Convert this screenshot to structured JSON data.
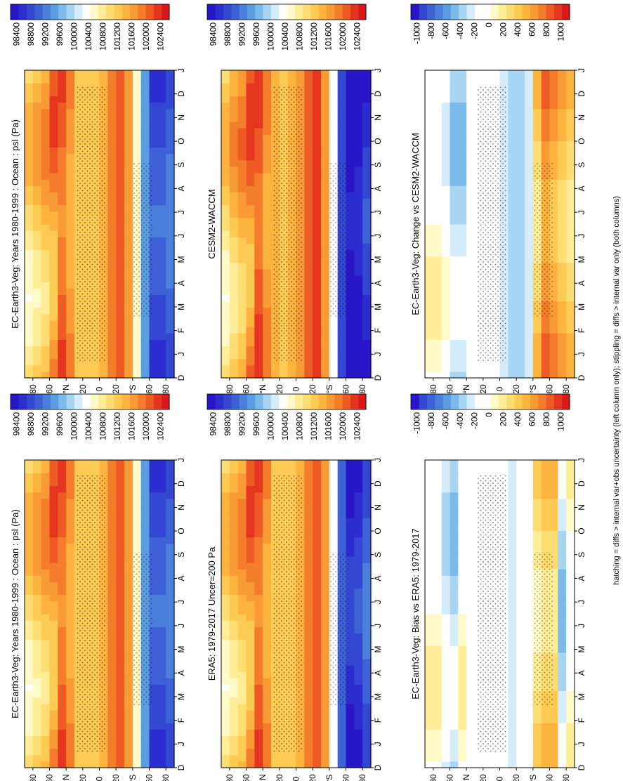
{
  "footnote": "hatching = diffs > internal var+obs uncertainty (left column only); stippling = diffs > internal var only (both columns)",
  "colors": {
    "pressure_scale": [
      "#d7191c",
      "#e4361f",
      "#ee5a24",
      "#f47d2c",
      "#f99b35",
      "#fcb43f",
      "#fdcb53",
      "#fede73",
      "#ffed98",
      "#fffac8",
      "#ffffff",
      "#d5ecfa",
      "#a8d6f2",
      "#7bbbeb",
      "#5b9de3",
      "#4a7fdc",
      "#3d62d6",
      "#3447d2",
      "#2c2dcf",
      "#2a16c9"
    ],
    "anomaly_scale": [
      "#d7191c",
      "#e4361f",
      "#ee5a24",
      "#f47d2c",
      "#f99b35",
      "#fcb43f",
      "#fdcb53",
      "#fede73",
      "#ffed98",
      "#fffac8",
      "#ffffff",
      "#ffffff",
      "#d5ecfa",
      "#a8d6f2",
      "#7bbbeb",
      "#5b9de3",
      "#4a7fdc",
      "#3d62d6",
      "#3447d2",
      "#2a16c9"
    ]
  },
  "chart_data": [
    {
      "type": "heatmap",
      "panel": "top-left",
      "title": "EC-Earth3-Veg: Years 1980-1999 : Ocean : psl (Pa)",
      "x_ticks": [
        "D",
        "J",
        "F",
        "M",
        "A",
        "M",
        "J",
        "J",
        "A",
        "S",
        "O",
        "N",
        "D",
        "J"
      ],
      "y_ticks": [
        "80",
        "60",
        "°N",
        "20",
        "0",
        "20",
        "°S",
        "60",
        "80"
      ],
      "colorbar": {
        "labels": [
          "102400",
          "102000",
          "101600",
          "101200",
          "100800",
          "100400",
          "100000",
          "99600",
          "99200",
          "98800",
          "98400"
        ],
        "scale": "pressure_scale"
      },
      "latitude_profile_Pa": [
        100900,
        101100,
        101300,
        101600,
        101900,
        101500,
        101200,
        101100,
        101150,
        101400,
        101700,
        101900,
        101500,
        100600,
        99400,
        98900,
        98900,
        99100
      ],
      "description_values": {
        "arctic_winter_max": 102000,
        "subtropical_high_max": 102000,
        "southern_ocean_min": 98600
      }
    },
    {
      "type": "heatmap",
      "panel": "top-right",
      "title": "EC-Earth3-Veg: Years 1980-1999 : Ocean : psl (Pa)",
      "x_ticks": [
        "D",
        "J",
        "F",
        "M",
        "A",
        "M",
        "J",
        "J",
        "A",
        "S",
        "O",
        "N",
        "D",
        "J"
      ],
      "y_ticks": [
        "80",
        "60",
        "°N",
        "20",
        "0",
        "20",
        "°S",
        "60",
        "80"
      ],
      "colorbar": {
        "labels": [
          "102400",
          "102000",
          "101600",
          "101200",
          "100800",
          "100400",
          "100000",
          "99600",
          "99200",
          "98800",
          "98400"
        ],
        "scale": "pressure_scale"
      },
      "latitude_profile_Pa": [
        100900,
        101100,
        101300,
        101600,
        101900,
        101500,
        101200,
        101100,
        101150,
        101400,
        101700,
        101900,
        101500,
        100600,
        99400,
        98900,
        98900,
        99100
      ]
    },
    {
      "type": "heatmap",
      "panel": "middle-left",
      "title": "ERA5: 1979-2017 Uncer=200 Pa",
      "x_ticks": [
        "D",
        "J",
        "F",
        "M",
        "A",
        "M",
        "J",
        "J",
        "A",
        "S",
        "O",
        "N",
        "D",
        "J"
      ],
      "y_ticks": [
        "80",
        "60",
        "°N",
        "20",
        "0",
        "20",
        "°S",
        "60",
        "80"
      ],
      "colorbar": {
        "labels": [
          "102400",
          "102000",
          "101600",
          "101200",
          "100800",
          "100400",
          "100000",
          "99600",
          "99200",
          "98800",
          "98400"
        ],
        "scale": "pressure_scale"
      },
      "latitude_profile_Pa": [
        100900,
        101100,
        101300,
        101600,
        101900,
        101500,
        101200,
        101100,
        101150,
        101400,
        101700,
        101900,
        101500,
        100400,
        99100,
        98600,
        98700,
        99000
      ]
    },
    {
      "type": "heatmap",
      "panel": "middle-right",
      "title": "CESM2-WACCM",
      "x_ticks": [
        "D",
        "J",
        "F",
        "M",
        "A",
        "M",
        "J",
        "J",
        "A",
        "S",
        "O",
        "N",
        "D",
        "J"
      ],
      "y_ticks": [
        "80",
        "60",
        "°N",
        "20",
        "0",
        "20",
        "°S",
        "60",
        "80"
      ],
      "colorbar": {
        "labels": [
          "102400",
          "102000",
          "101600",
          "101200",
          "100800",
          "100400",
          "100000",
          "99600",
          "99200",
          "98800",
          "98400"
        ],
        "scale": "pressure_scale"
      },
      "latitude_profile_Pa": [
        100900,
        101200,
        101400,
        101700,
        102000,
        101600,
        101300,
        101200,
        101300,
        101600,
        101900,
        102100,
        101600,
        100300,
        98800,
        98300,
        98400,
        98700
      ]
    },
    {
      "type": "heatmap",
      "panel": "bottom-left",
      "title": "EC-Earth3-Veg: Bias vs ERA5: 1979-2017",
      "x_ticks": [
        "D",
        "J",
        "F",
        "M",
        "A",
        "M",
        "J",
        "J",
        "A",
        "S",
        "O",
        "N",
        "D",
        "J"
      ],
      "y_ticks": [
        "80",
        "60",
        "°N",
        "20",
        "0",
        "20",
        "°S",
        "60",
        "80"
      ],
      "colorbar": {
        "labels": [
          "1000",
          "800",
          "600",
          "400",
          "200",
          "0",
          "-200",
          "-400",
          "-600",
          "-800",
          "-1000"
        ],
        "scale": "anomaly_scale"
      },
      "latitude_profile_Pa": [
        0,
        0,
        -200,
        -300,
        0,
        0,
        0,
        0,
        0,
        0,
        -200,
        -100,
        0,
        200,
        300,
        300,
        -300,
        0
      ]
    },
    {
      "type": "heatmap",
      "panel": "bottom-right",
      "title": "EC-Earth3-Veg: Change vs CESM2-WACCM",
      "x_ticks": [
        "D",
        "J",
        "F",
        "M",
        "A",
        "M",
        "J",
        "J",
        "A",
        "S",
        "O",
        "N",
        "D",
        "J"
      ],
      "y_ticks": [
        "80",
        "60",
        "°N",
        "20",
        "0",
        "20",
        "°S",
        "60",
        "80"
      ],
      "colorbar": {
        "labels": [
          "1000",
          "800",
          "600",
          "400",
          "200",
          "0",
          "-200",
          "-400",
          "-600",
          "-800",
          "-1000"
        ],
        "scale": "anomaly_scale"
      },
      "latitude_profile_Pa": [
        0,
        0,
        -100,
        -300,
        -300,
        -100,
        0,
        0,
        0,
        -200,
        -300,
        -300,
        -200,
        300,
        600,
        500,
        400,
        300
      ]
    }
  ]
}
